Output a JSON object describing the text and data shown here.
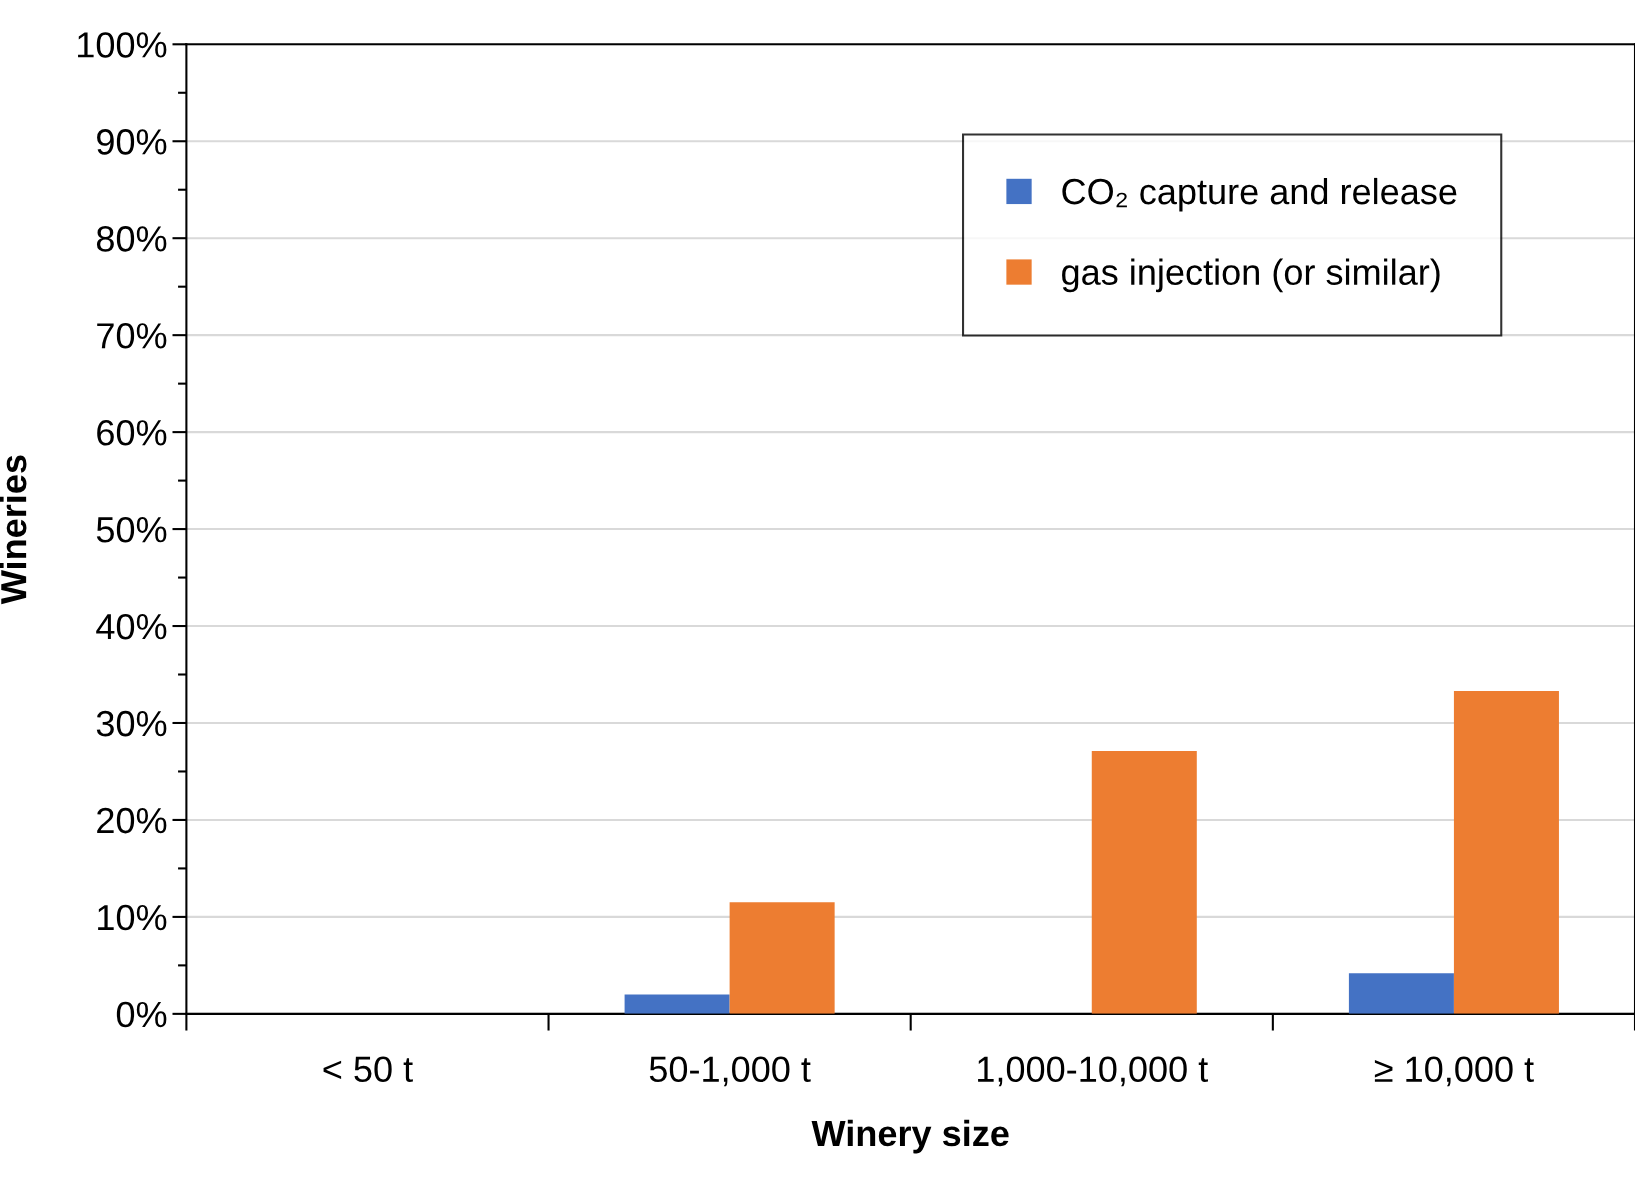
{
  "chart_data": {
    "type": "bar",
    "xlabel": "Winery size",
    "ylabel": "Wineries",
    "categories": [
      "< 50 t",
      "50-1,000 t",
      "1,000-10,000 t",
      "≥ 10,000 t"
    ],
    "series": [
      {
        "name": "CO₂ capture and release",
        "color": "#4472c4",
        "values": [
          0,
          2,
          0,
          4.2
        ]
      },
      {
        "name": "gas injection (or similar)",
        "color": "#ed7d31",
        "values": [
          0,
          11.5,
          27.1,
          33.3
        ]
      }
    ],
    "ylim": [
      0,
      100
    ],
    "yticks": [
      {
        "value": 0,
        "label": "0%"
      },
      {
        "value": 5,
        "label": null
      },
      {
        "value": 10,
        "label": "10%"
      },
      {
        "value": 15,
        "label": null
      },
      {
        "value": 20,
        "label": "20%"
      },
      {
        "value": 25,
        "label": null
      },
      {
        "value": 30,
        "label": "30%"
      },
      {
        "value": 35,
        "label": null
      },
      {
        "value": 40,
        "label": "40%"
      },
      {
        "value": 45,
        "label": null
      },
      {
        "value": 50,
        "label": "50%"
      },
      {
        "value": 55,
        "label": null
      },
      {
        "value": 60,
        "label": "60%"
      },
      {
        "value": 65,
        "label": null
      },
      {
        "value": 70,
        "label": "70%"
      },
      {
        "value": 75,
        "label": null
      },
      {
        "value": 80,
        "label": "80%"
      },
      {
        "value": 85,
        "label": null
      },
      {
        "value": 90,
        "label": "90%"
      },
      {
        "value": 95,
        "label": null
      },
      {
        "value": 100,
        "label": "100%"
      }
    ],
    "grid": "y",
    "legend": "top right"
  }
}
